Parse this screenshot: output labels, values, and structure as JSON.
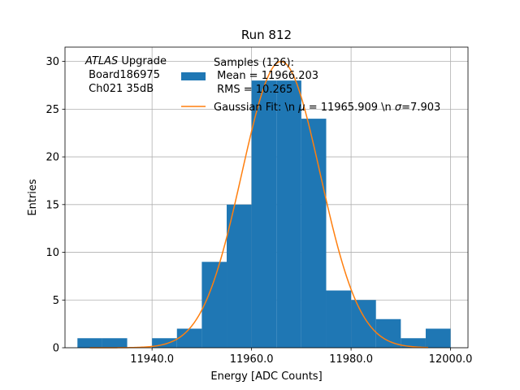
{
  "chart_data": {
    "type": "bar",
    "title": "Run 812",
    "xlabel": "Energy [ADC Counts]",
    "ylabel": "Entries",
    "xlim": [
      11922.5,
      12003.5
    ],
    "ylim": [
      0,
      31.5
    ],
    "x_ticks": [
      11940.0,
      11960.0,
      11980.0,
      12000.0
    ],
    "x_tick_labels": [
      "11940.0",
      "11960.0",
      "11980.0",
      "12000.0"
    ],
    "y_ticks": [
      0,
      5,
      10,
      15,
      20,
      25,
      30
    ],
    "y_tick_labels": [
      "0",
      "5",
      "10",
      "15",
      "20",
      "25",
      "30"
    ],
    "grid": true,
    "histogram": {
      "name": "Samples (126):\n Mean = 11966.203\n RMS = 10.265",
      "color": "#1f77b4",
      "bin_edges": [
        11925,
        11930,
        11935,
        11940,
        11945,
        11950,
        11955,
        11960,
        11965,
        11970,
        11975,
        11980,
        11985,
        11990,
        11995,
        12000
      ],
      "counts": [
        1,
        1,
        0,
        1,
        2,
        9,
        15,
        28,
        28,
        24,
        6,
        5,
        3,
        1,
        2
      ]
    },
    "fit": {
      "name": "Gaussian Fit: \\n $\\mu$ = 11965.909 \\n $\\sigma$=7.903",
      "color": "#ff7f0e",
      "mu": 11965.909,
      "sigma": 7.903,
      "amplitude": 30.0,
      "x_range": [
        11927.5,
        11995.5
      ]
    },
    "legend_placement": "top-center",
    "annotation": {
      "italic": "ATLAS",
      "rest": " Upgrade",
      "line2": " Board186975",
      "line3": " Ch021 35dB"
    },
    "legend": {
      "samples_line1": "Samples (126):",
      "samples_line2": " Mean = 11966.203",
      "samples_line3": " RMS = 10.265",
      "fit_prefix": "Gaussian Fit: \\n ",
      "fit_mu_symbol": "μ",
      "fit_mid": " = 11965.909 \\n ",
      "fit_sigma_symbol": "σ",
      "fit_suffix": "=7.903"
    }
  }
}
